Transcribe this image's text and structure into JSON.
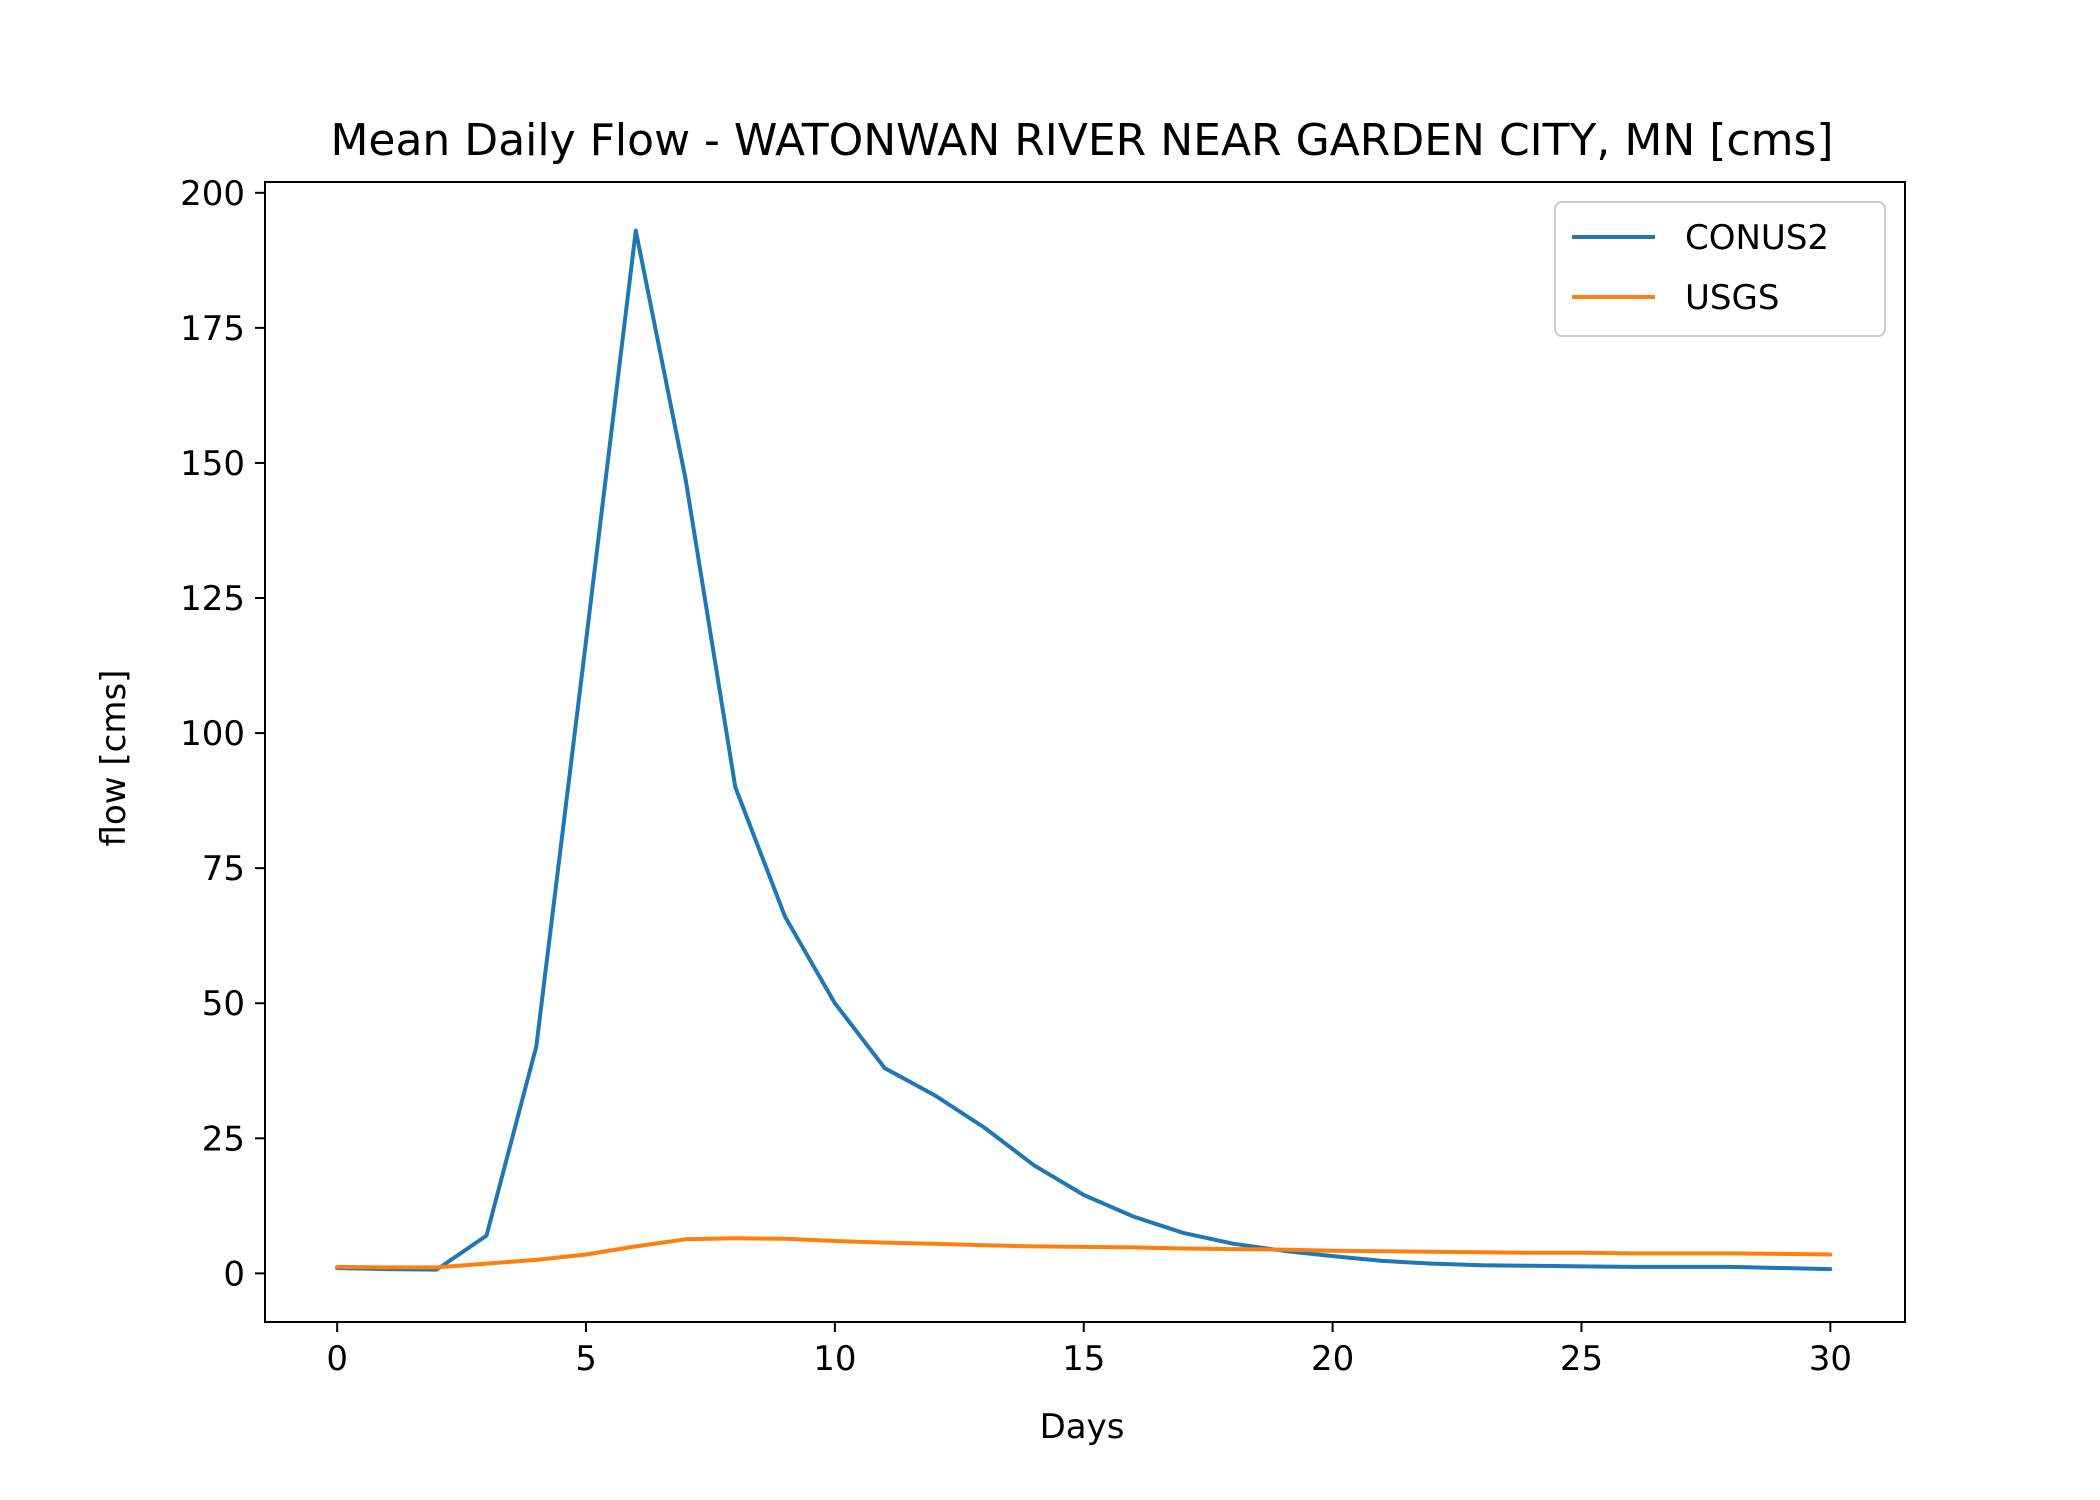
{
  "chart_data": {
    "type": "line",
    "title": "Mean Daily Flow - WATONWAN RIVER NEAR GARDEN CITY, MN [cms]",
    "xlabel": "Days",
    "ylabel": "flow [cms]",
    "xlim": [
      -1.45,
      31.5
    ],
    "ylim": [
      -9,
      202
    ],
    "xticks": [
      0,
      5,
      10,
      15,
      20,
      25,
      30
    ],
    "yticks": [
      0,
      25,
      50,
      75,
      100,
      125,
      150,
      175,
      200
    ],
    "grid": false,
    "legend_position": "top-right",
    "x": [
      0,
      1,
      2,
      3,
      4,
      5,
      6,
      7,
      8,
      9,
      10,
      11,
      12,
      13,
      14,
      15,
      16,
      17,
      18,
      19,
      20,
      21,
      22,
      23,
      24,
      25,
      26,
      27,
      28,
      29,
      30
    ],
    "series": [
      {
        "name": "CONUS2",
        "color": "#1f77b4",
        "values": [
          1.0,
          0.8,
          0.7,
          7,
          42,
          117,
          193,
          147,
          90,
          66,
          50,
          38,
          33,
          27,
          20,
          14.5,
          10.5,
          7.5,
          5.5,
          4.2,
          3.2,
          2.3,
          1.8,
          1.5,
          1.4,
          1.3,
          1.2,
          1.2,
          1.2,
          1.0,
          0.8
        ]
      },
      {
        "name": "USGS",
        "color": "#ff7f0e",
        "values": [
          1.2,
          1.1,
          1.1,
          1.8,
          2.5,
          3.5,
          5.0,
          6.3,
          6.5,
          6.4,
          6.0,
          5.7,
          5.5,
          5.2,
          5.0,
          4.9,
          4.8,
          4.6,
          4.5,
          4.4,
          4.2,
          4.1,
          4.0,
          3.9,
          3.8,
          3.8,
          3.7,
          3.7,
          3.7,
          3.6,
          3.5
        ]
      }
    ]
  }
}
